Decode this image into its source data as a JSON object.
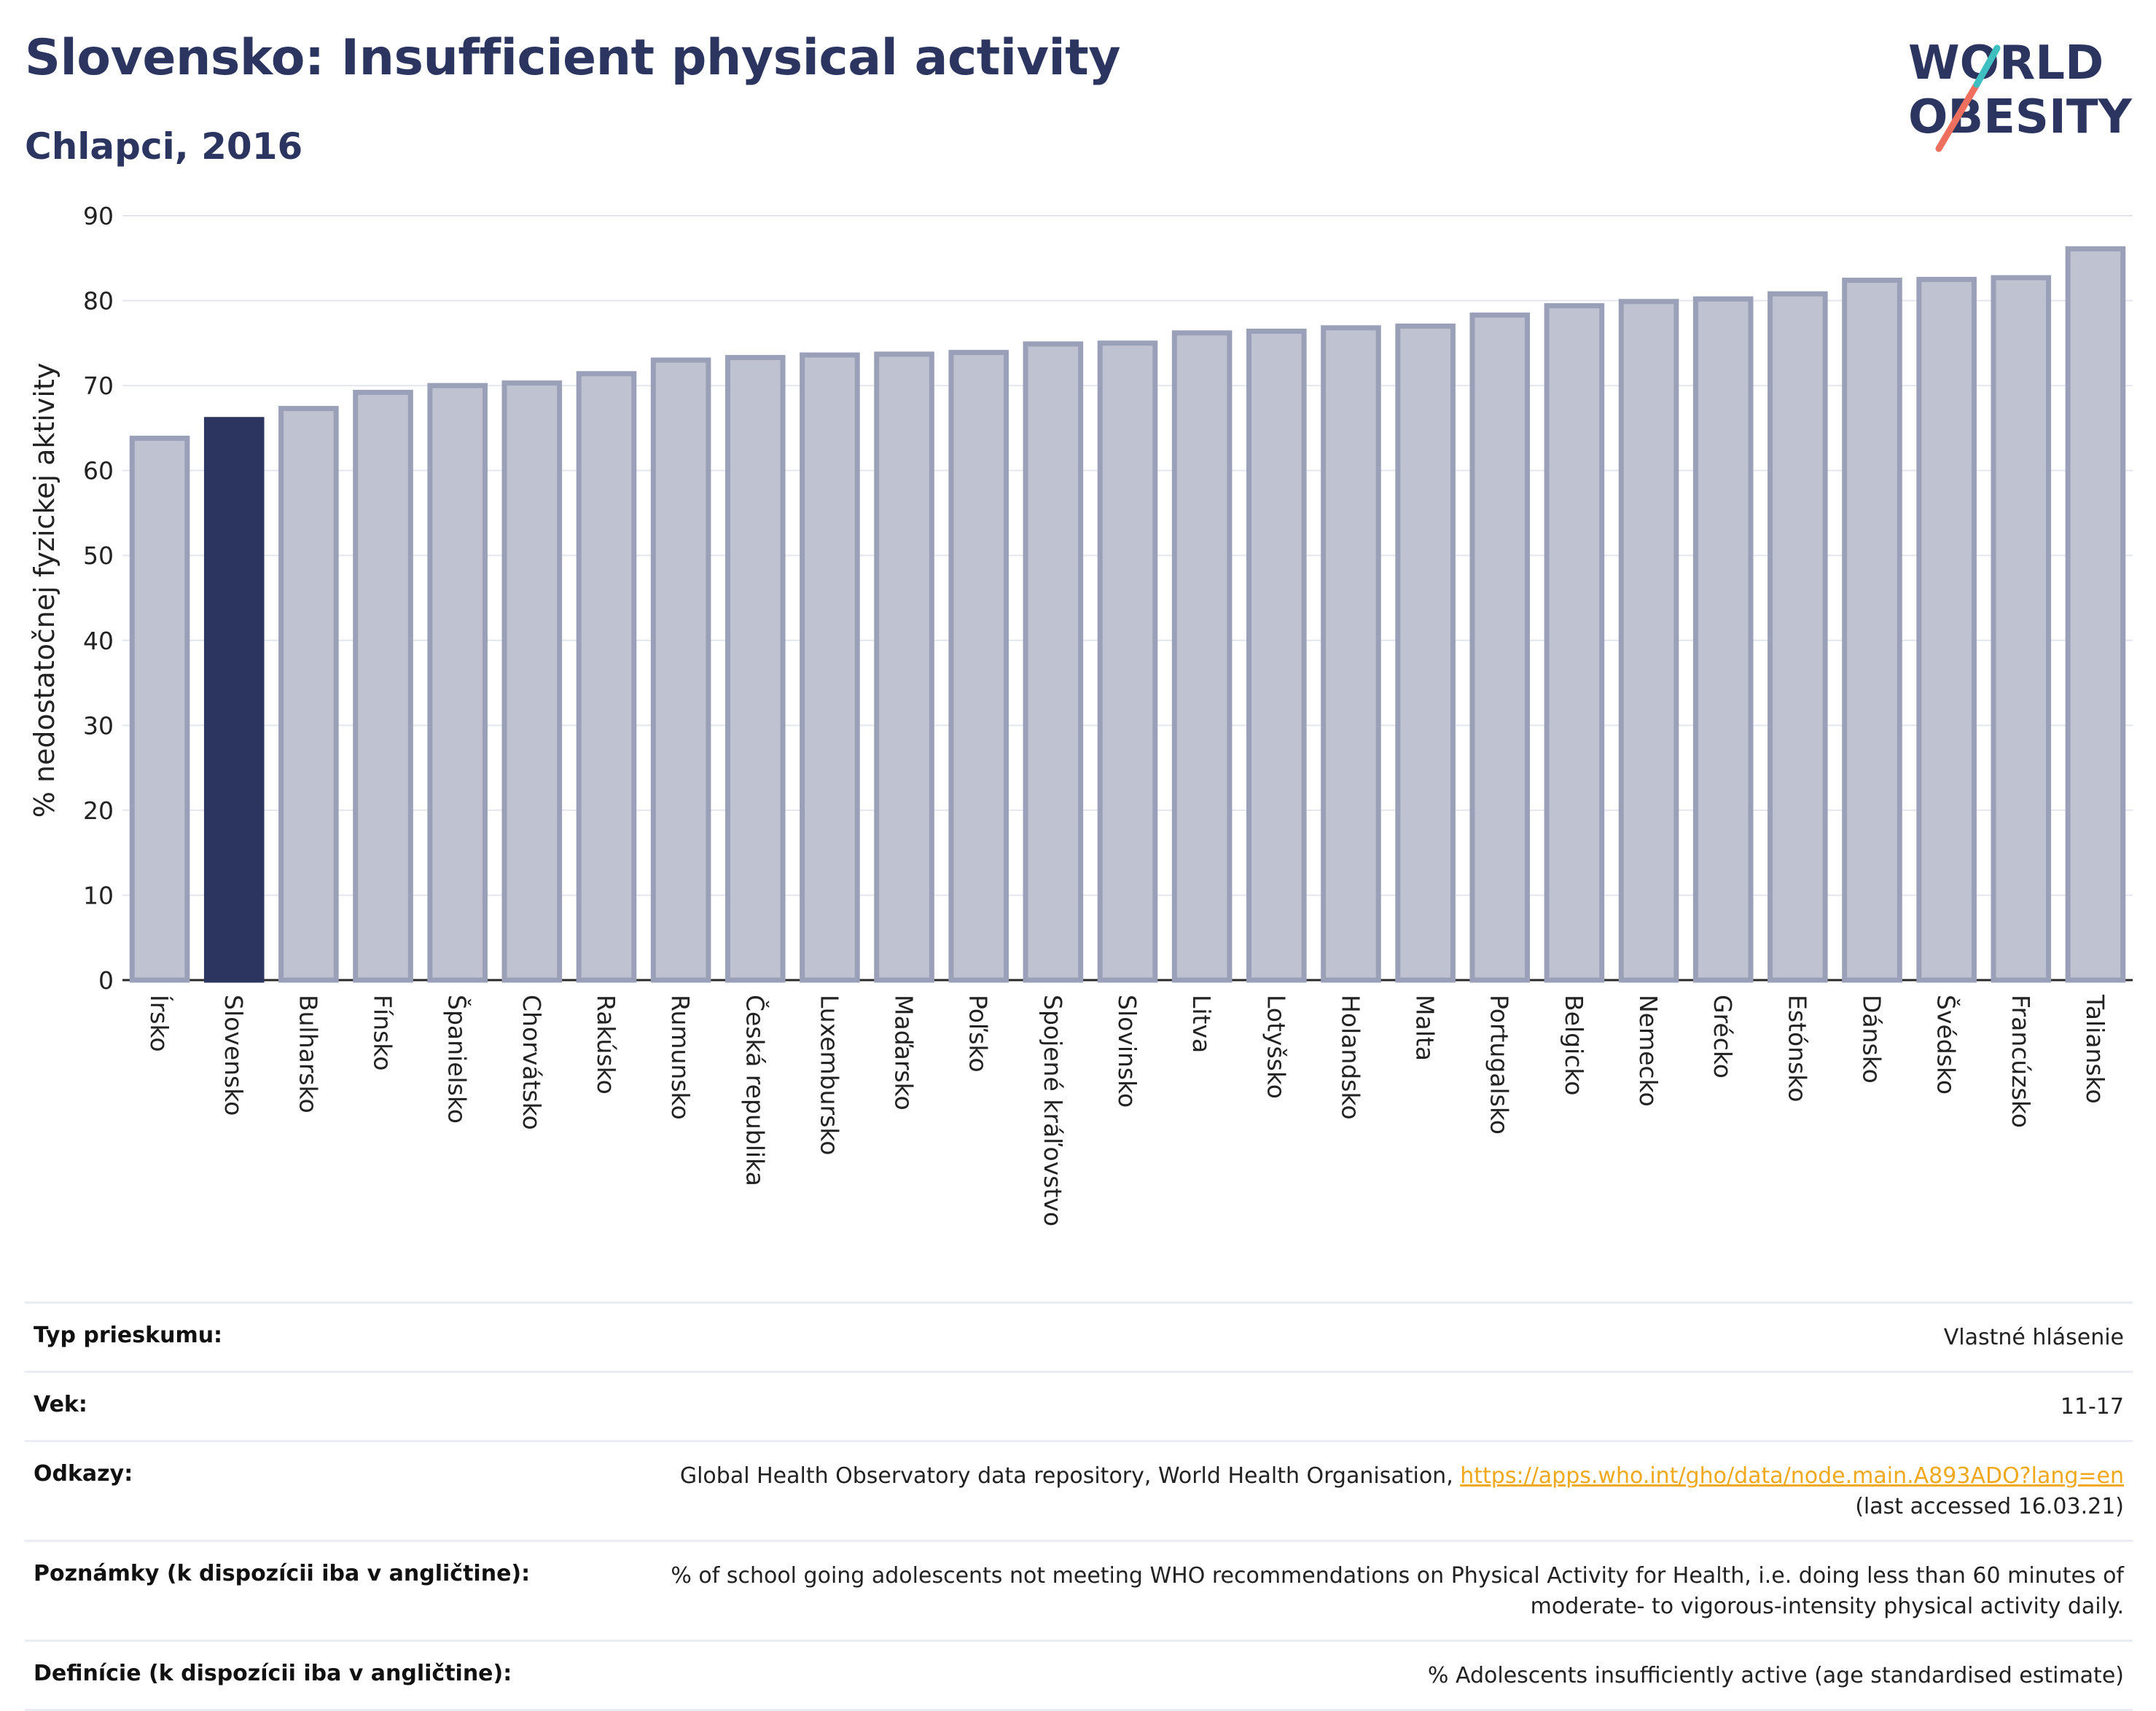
{
  "header": {
    "title": "Slovensko: Insufficient physical activity",
    "subtitle": "Chlapci, 2016"
  },
  "logo": {
    "line1": "WORLD",
    "line2": "OBESITY"
  },
  "colors": {
    "highlight": "#2b3560",
    "bar_fill": "#bfc2d0",
    "bar_stroke": "#9aa0b8",
    "accent_teal": "#3fbfbf",
    "accent_coral": "#ef6f5e",
    "link": "#f0a81c"
  },
  "chart_data": {
    "type": "bar",
    "ylabel": "% nedostatočnej fyzickej aktivity",
    "ylim": [
      0,
      90
    ],
    "yticks": [
      0,
      10,
      20,
      30,
      40,
      50,
      60,
      70,
      80,
      90
    ],
    "grid": true,
    "highlight": "Slovensko",
    "categories": [
      "Írsko",
      "Slovensko",
      "Bulharsko",
      "Fínsko",
      "Španielsko",
      "Chorvátsko",
      "Rakúsko",
      "Rumunsko",
      "Česká republika",
      "Luxembursko",
      "Maďarsko",
      "Poľsko",
      "Spojené kráľovstvo",
      "Slovinsko",
      "Litva",
      "Lotyšsko",
      "Holandsko",
      "Malta",
      "Portugalsko",
      "Belgicko",
      "Nemecko",
      "Grécko",
      "Estónsko",
      "Dánsko",
      "Švédsko",
      "Francúzsko",
      "Taliansko"
    ],
    "values": [
      63.8,
      66.0,
      67.3,
      69.2,
      70.0,
      70.3,
      71.4,
      73.0,
      73.3,
      73.6,
      73.7,
      73.9,
      74.9,
      75.0,
      76.2,
      76.4,
      76.8,
      77.0,
      78.3,
      79.4,
      79.9,
      80.2,
      80.8,
      82.4,
      82.5,
      82.7,
      86.1
    ]
  },
  "metadata": {
    "survey_type_label": "Typ prieskumu:",
    "survey_type_value": "Vlastné hlásenie",
    "age_label": "Vek:",
    "age_value": "11-17",
    "references_label": "Odkazy:",
    "references_text": "Global Health Observatory data repository, World Health Organisation, ",
    "references_link": "https://apps.who.int/gho/data/node.main.A893ADO?lang=en",
    "references_accessed": "(last accessed 16.03.21)",
    "notes_label": "Poznámky (k dispozícii iba v angličtine):",
    "notes_value": "% of school going adolescents not meeting WHO recommendations on Physical Activity for Health, i.e. doing less than 60 minutes of moderate- to vigorous-intensity physical activity daily.",
    "definitions_label": "Definície (k dispozícii iba v angličtine):",
    "definitions_value": "% Adolescents insufficiently active (age standardised estimate)"
  }
}
